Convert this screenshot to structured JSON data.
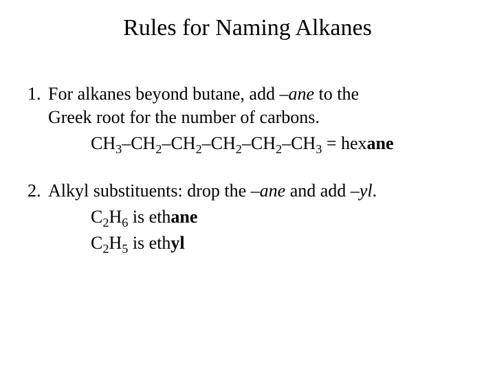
{
  "title": "Rules for Naming Alkanes",
  "rule1": {
    "num": "1.",
    "text_a": "For alkanes beyond butane, add ",
    "ane": "–ane",
    "text_b": " to the",
    "text_c": "Greek root for the number of carbons.",
    "formula_prefix": "CH",
    "sub3": "3",
    "sub2": "2",
    "dash": "–",
    "equals": " = hex",
    "suffix": "ane"
  },
  "rule2": {
    "num": "2.",
    "text_a": "Alkyl substituents:  drop the ",
    "ane": "–ane",
    "text_b": " and add ",
    "yl": "–yl",
    "period": ".",
    "line2_a": "C",
    "line2_sub1": "2",
    "line2_b": "H",
    "line2_sub2": "6",
    "line2_c": " is eth",
    "line2_bold": "ane",
    "line3_a": "C",
    "line3_sub1": "2",
    "line3_b": "H",
    "line3_sub2": "5",
    "line3_c": " is eth",
    "line3_bold": "yl"
  },
  "colors": {
    "text": "#000000",
    "background": "#ffffff"
  },
  "fonts": {
    "title_size": 34,
    "body_size": 26,
    "family": "Times New Roman"
  }
}
